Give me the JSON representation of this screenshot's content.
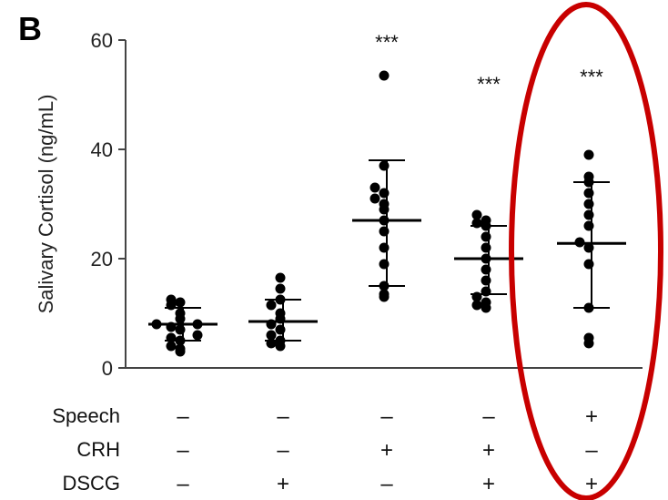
{
  "panel_label": "B",
  "chart_data": {
    "type": "scatter",
    "ylabel": "Salivary Cortisol (ng/mL)",
    "ylim": [
      0,
      60
    ],
    "yticks": [
      0,
      20,
      40,
      60
    ],
    "grid": false,
    "groups": [
      {
        "mean": 8,
        "sd_low": 5,
        "sd_high": 11,
        "significance": "",
        "conditions": {
          "speech": "–",
          "crh": "–",
          "dscg": "–"
        },
        "points": [
          3,
          3.5,
          4,
          5,
          5.5,
          6,
          7,
          7.5,
          8,
          8,
          9,
          10,
          11.5,
          12,
          12.5
        ]
      },
      {
        "mean": 8.5,
        "sd_low": 5,
        "sd_high": 12.5,
        "significance": "",
        "conditions": {
          "speech": "–",
          "crh": "–",
          "dscg": "+"
        },
        "points": [
          4,
          4.5,
          5,
          6,
          7,
          8,
          9,
          10,
          11.5,
          12.5,
          14.5,
          16.5
        ]
      },
      {
        "mean": 27,
        "sd_low": 15,
        "sd_high": 38,
        "significance": "***",
        "conditions": {
          "speech": "–",
          "crh": "+",
          "dscg": "–"
        },
        "points": [
          13,
          13.5,
          15,
          19,
          22,
          25,
          27,
          29,
          30,
          31,
          32,
          33,
          37,
          53.5
        ]
      },
      {
        "mean": 20,
        "sd_low": 13.5,
        "sd_high": 26,
        "significance": "***",
        "conditions": {
          "speech": "–",
          "crh": "+",
          "dscg": "+"
        },
        "points": [
          11,
          11.5,
          12,
          13,
          14,
          16,
          18,
          20,
          22,
          24,
          26,
          26.5,
          27,
          28
        ]
      },
      {
        "mean": 22.8,
        "sd_low": 11,
        "sd_high": 34,
        "significance": "***",
        "conditions": {
          "speech": "+",
          "crh": "–",
          "dscg": "+"
        },
        "points": [
          4.5,
          5.5,
          11,
          19,
          22,
          23,
          26,
          28,
          30,
          32,
          34,
          35,
          39
        ]
      }
    ]
  },
  "condition_rows": [
    {
      "key": "speech",
      "label": "Speech"
    },
    {
      "key": "crh",
      "label": "CRH"
    },
    {
      "key": "dscg",
      "label": "DSCG"
    }
  ],
  "colors": {
    "points": "#000000",
    "axis": "#444444",
    "highlight": "#c80000"
  }
}
